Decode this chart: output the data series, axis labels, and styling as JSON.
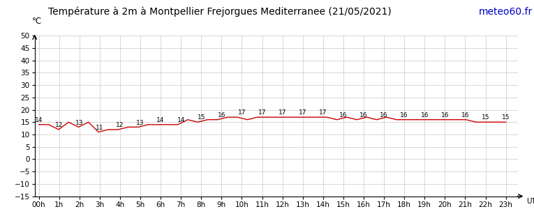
{
  "title": "Température à 2m à Montpellier Frejorgues Mediterranee (21/05/2021)",
  "ylabel": "°C",
  "watermark": "meteo60.fr",
  "hours": [
    "00h",
    "1h",
    "2h",
    "3h",
    "4h",
    "5h",
    "6h",
    "7h",
    "8h",
    "9h",
    "10h",
    "11h",
    "12h",
    "13h",
    "14h",
    "15h",
    "16h",
    "17h",
    "18h",
    "19h",
    "20h",
    "21h",
    "22h",
    "23h"
  ],
  "x_utc_label": "UTC",
  "temperatures": [
    14,
    14,
    12,
    15,
    13,
    15,
    11,
    12,
    12,
    13,
    13,
    14,
    14,
    14,
    14,
    16,
    15,
    16,
    16,
    17,
    17,
    16,
    17,
    17,
    17,
    17,
    17,
    17,
    17,
    17,
    16,
    17,
    16,
    17,
    16,
    17,
    16,
    16,
    16,
    16,
    16,
    16,
    16,
    16,
    15,
    15,
    15,
    15
  ],
  "line_color": "#cc0000",
  "background_color": "#ffffff",
  "grid_color": "#c8c8c8",
  "ylim": [
    -15,
    50
  ],
  "yticks": [
    -15,
    -10,
    -5,
    0,
    5,
    10,
    15,
    20,
    25,
    30,
    35,
    40,
    45,
    50
  ],
  "title_fontsize": 10,
  "tick_fontsize": 7.5,
  "annot_fontsize": 6.5,
  "watermark_color": "#0000cc"
}
